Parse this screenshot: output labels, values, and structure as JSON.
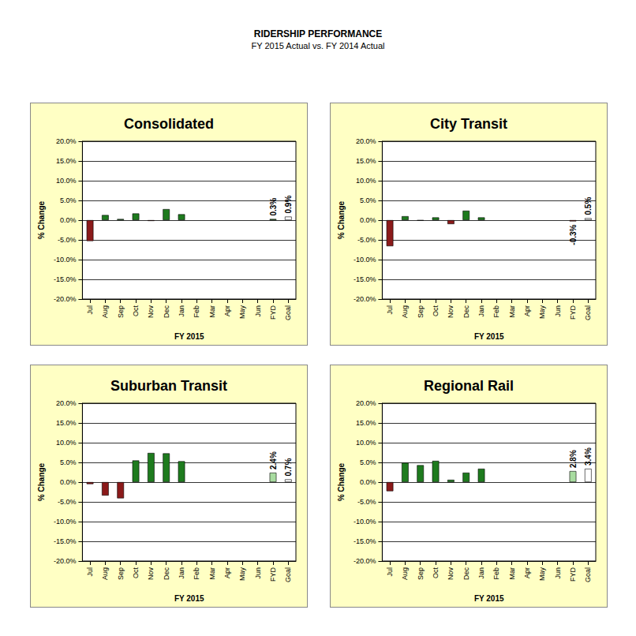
{
  "title": "RIDERSHIP PERFORMANCE",
  "subtitle": "FY 2015 Actual vs. FY 2014 Actual",
  "chart_data": [
    {
      "type": "bar",
      "title": "Consolidated",
      "x_label": "FY 2015",
      "y_label": "% Change",
      "categories": [
        "Jul",
        "Aug",
        "Sep",
        "Oct",
        "Nov",
        "Dec",
        "Jan",
        "Feb",
        "Mar",
        "Apr",
        "May",
        "Jun",
        "FYD",
        "Goal"
      ],
      "values": [
        -5.3,
        1.3,
        0.3,
        1.7,
        -0.2,
        2.8,
        1.5,
        null,
        null,
        null,
        null,
        null,
        0.3,
        0.9
      ],
      "value_labels": [
        null,
        null,
        null,
        null,
        null,
        null,
        null,
        null,
        null,
        null,
        null,
        null,
        "0.3%",
        "0.9%"
      ],
      "colors": [
        "#8b1a1a",
        "#1e7b1e",
        "#1e7b1e",
        "#1e7b1e",
        "#8b1a1a",
        "#1e7b1e",
        "#1e7b1e",
        null,
        null,
        null,
        null,
        null,
        "#1e7b1e",
        "#ffffff"
      ],
      "data_labels": true,
      "ylim": [
        -20,
        20
      ],
      "yticks": [
        {
          "value": -20,
          "label": "-20.0%"
        },
        {
          "value": -15,
          "label": "-15.0%"
        },
        {
          "value": -10,
          "label": "-10.0%"
        },
        {
          "value": -5,
          "label": "-5.0%"
        },
        {
          "value": 0,
          "label": "0.0%"
        },
        {
          "value": 5,
          "label": "5.0%"
        },
        {
          "value": 10,
          "label": "10.0%"
        },
        {
          "value": 15,
          "label": "15.0%"
        },
        {
          "value": 20,
          "label": "20.0%"
        }
      ],
      "grid": true
    },
    {
      "type": "bar",
      "title": "City Transit",
      "x_label": "FY 2015",
      "y_label": "% Change",
      "categories": [
        "Jul",
        "Aug",
        "Sep",
        "Oct",
        "Nov",
        "Dec",
        "Jan",
        "Feb",
        "Mar",
        "Apr",
        "May",
        "Jun",
        "FYD",
        "Goal"
      ],
      "values": [
        -6.6,
        1.0,
        -0.1,
        0.7,
        -1.0,
        2.4,
        0.7,
        null,
        null,
        null,
        null,
        null,
        -0.3,
        0.5
      ],
      "value_labels": [
        null,
        null,
        null,
        null,
        null,
        null,
        null,
        null,
        null,
        null,
        null,
        null,
        "-0.3%",
        "0.5%"
      ],
      "colors": [
        "#8b1a1a",
        "#1e7b1e",
        "#8b1a1a",
        "#1e7b1e",
        "#8b1a1a",
        "#1e7b1e",
        "#1e7b1e",
        null,
        null,
        null,
        null,
        null,
        "#8b1a1a",
        "#ffffff"
      ],
      "data_labels": true,
      "ylim": [
        -20,
        20
      ],
      "yticks": [
        {
          "value": -20,
          "label": "-20.0%"
        },
        {
          "value": -15,
          "label": "-15.0%"
        },
        {
          "value": -10,
          "label": "-10.0%"
        },
        {
          "value": -5,
          "label": "-5.0%"
        },
        {
          "value": 0,
          "label": "0.0%"
        },
        {
          "value": 5,
          "label": "5.0%"
        },
        {
          "value": 10,
          "label": "10.0%"
        },
        {
          "value": 15,
          "label": "15.0%"
        },
        {
          "value": 20,
          "label": "20.0%"
        }
      ],
      "grid": true
    },
    {
      "type": "bar",
      "title": "Suburban Transit",
      "x_label": "FY 2015",
      "y_label": "% Change",
      "categories": [
        "Jul",
        "Aug",
        "Sep",
        "Oct",
        "Nov",
        "Dec",
        "Jan",
        "Feb",
        "Mar",
        "Apr",
        "May",
        "Jun",
        "FYD",
        "Goal"
      ],
      "values": [
        -0.5,
        -3.4,
        -4.1,
        5.5,
        7.4,
        7.3,
        5.3,
        null,
        null,
        null,
        null,
        null,
        2.4,
        0.7
      ],
      "value_labels": [
        null,
        null,
        null,
        null,
        null,
        null,
        null,
        null,
        null,
        null,
        null,
        null,
        "2.4%",
        "0.7%"
      ],
      "colors": [
        "#8b1a1a",
        "#8b1a1a",
        "#8b1a1a",
        "#1e7b1e",
        "#1e7b1e",
        "#1e7b1e",
        "#1e7b1e",
        null,
        null,
        null,
        null,
        null,
        "#a8dca0",
        "#ffffff"
      ],
      "data_labels": true,
      "ylim": [
        -20,
        20
      ],
      "yticks": [
        {
          "value": -20,
          "label": "-20.0%"
        },
        {
          "value": -15,
          "label": "-15.0%"
        },
        {
          "value": -10,
          "label": "-10.0%"
        },
        {
          "value": -5,
          "label": "-5.0%"
        },
        {
          "value": 0,
          "label": "0.0%"
        },
        {
          "value": 5,
          "label": "5.0%"
        },
        {
          "value": 10,
          "label": "10.0%"
        },
        {
          "value": 15,
          "label": "15.0%"
        },
        {
          "value": 20,
          "label": "20.0%"
        }
      ],
      "grid": true
    },
    {
      "type": "bar",
      "title": "Regional Rail",
      "x_label": "FY 2015",
      "y_label": "% Change",
      "categories": [
        "Jul",
        "Aug",
        "Sep",
        "Oct",
        "Nov",
        "Dec",
        "Jan",
        "Feb",
        "Mar",
        "Apr",
        "May",
        "Jun",
        "FYD",
        "Goal"
      ],
      "values": [
        -2.3,
        4.9,
        4.3,
        5.4,
        0.6,
        2.4,
        3.4,
        null,
        null,
        null,
        null,
        null,
        2.8,
        3.4
      ],
      "value_labels": [
        null,
        null,
        null,
        null,
        null,
        null,
        null,
        null,
        null,
        null,
        null,
        null,
        "2.8%",
        "3.4%"
      ],
      "colors": [
        "#8b1a1a",
        "#1e7b1e",
        "#1e7b1e",
        "#1e7b1e",
        "#1e7b1e",
        "#1e7b1e",
        "#1e7b1e",
        null,
        null,
        null,
        null,
        null,
        "#a8dca0",
        "#ffffff"
      ],
      "data_labels": true,
      "ylim": [
        -20,
        20
      ],
      "yticks": [
        {
          "value": -20,
          "label": "-20.0%"
        },
        {
          "value": -15,
          "label": "-15.0%"
        },
        {
          "value": -10,
          "label": "-10.0%"
        },
        {
          "value": -5,
          "label": "-5.0%"
        },
        {
          "value": 0,
          "label": "0.0%"
        },
        {
          "value": 5,
          "label": "5.0%"
        },
        {
          "value": 10,
          "label": "10.0%"
        },
        {
          "value": 15,
          "label": "15.0%"
        },
        {
          "value": 20,
          "label": "20.0%"
        }
      ],
      "grid": true
    }
  ]
}
